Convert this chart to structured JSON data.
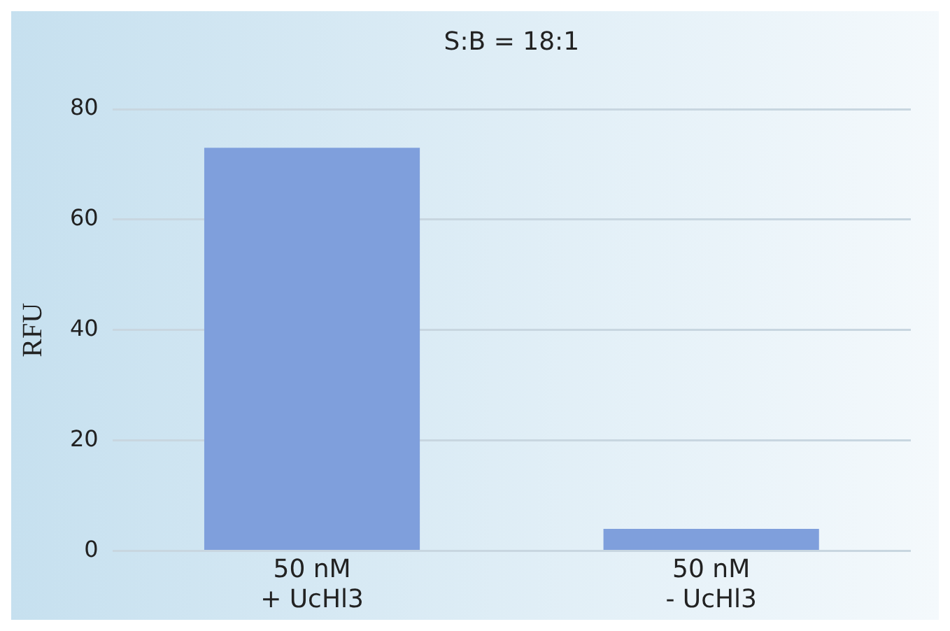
{
  "chart_data": {
    "type": "bar",
    "ylabel": "RFU",
    "categories": [
      "50 nM\n+ UcHl3",
      "50 nM\n- UcHl3"
    ],
    "values": [
      73,
      4
    ],
    "color": "#7f9fdc",
    "ylim": [
      0,
      80
    ],
    "yticks": [
      0,
      20,
      40,
      60,
      80
    ],
    "grid": "y",
    "legend": false,
    "annotations": [
      "S:B = 18:1"
    ]
  }
}
